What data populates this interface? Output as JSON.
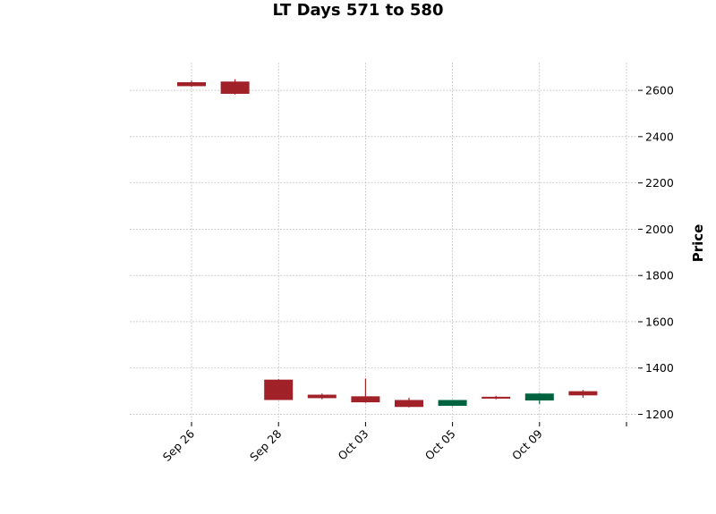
{
  "chart_data": {
    "type": "candlestick",
    "title": "LT Days 571 to 580",
    "ylabel": "Price",
    "xlabel": "",
    "ylim": [
      1175,
      2720
    ],
    "yticks": [
      1200,
      1400,
      1600,
      1800,
      2000,
      2200,
      2400,
      2600
    ],
    "ytick_side": "right",
    "grid": true,
    "xtick_labels": [
      {
        "index": 0,
        "label": "Sep 26"
      },
      {
        "index": 2,
        "label": "Sep 28"
      },
      {
        "index": 4,
        "label": "Oct 03"
      },
      {
        "index": 6,
        "label": "Oct 05"
      },
      {
        "index": 8,
        "label": "Oct 09"
      },
      {
        "index": 10,
        "label": ""
      }
    ],
    "colors": {
      "up": "#006340",
      "down": "#a02128"
    },
    "candles": [
      {
        "open": 2635,
        "high": 2642,
        "low": 2615,
        "close": 2618
      },
      {
        "open": 2638,
        "high": 2648,
        "low": 2582,
        "close": 2585
      },
      {
        "open": 1350,
        "high": 1352,
        "low": 1262,
        "close": 1262
      },
      {
        "open": 1285,
        "high": 1290,
        "low": 1265,
        "close": 1270
      },
      {
        "open": 1278,
        "high": 1355,
        "low": 1250,
        "close": 1252
      },
      {
        "open": 1262,
        "high": 1272,
        "low": 1230,
        "close": 1232
      },
      {
        "open": 1237,
        "high": 1262,
        "low": 1235,
        "close": 1262
      },
      {
        "open": 1276,
        "high": 1280,
        "low": 1265,
        "close": 1268
      },
      {
        "open": 1260,
        "high": 1292,
        "low": 1245,
        "close": 1290
      },
      {
        "open": 1300,
        "high": 1305,
        "low": 1272,
        "close": 1282
      }
    ]
  }
}
